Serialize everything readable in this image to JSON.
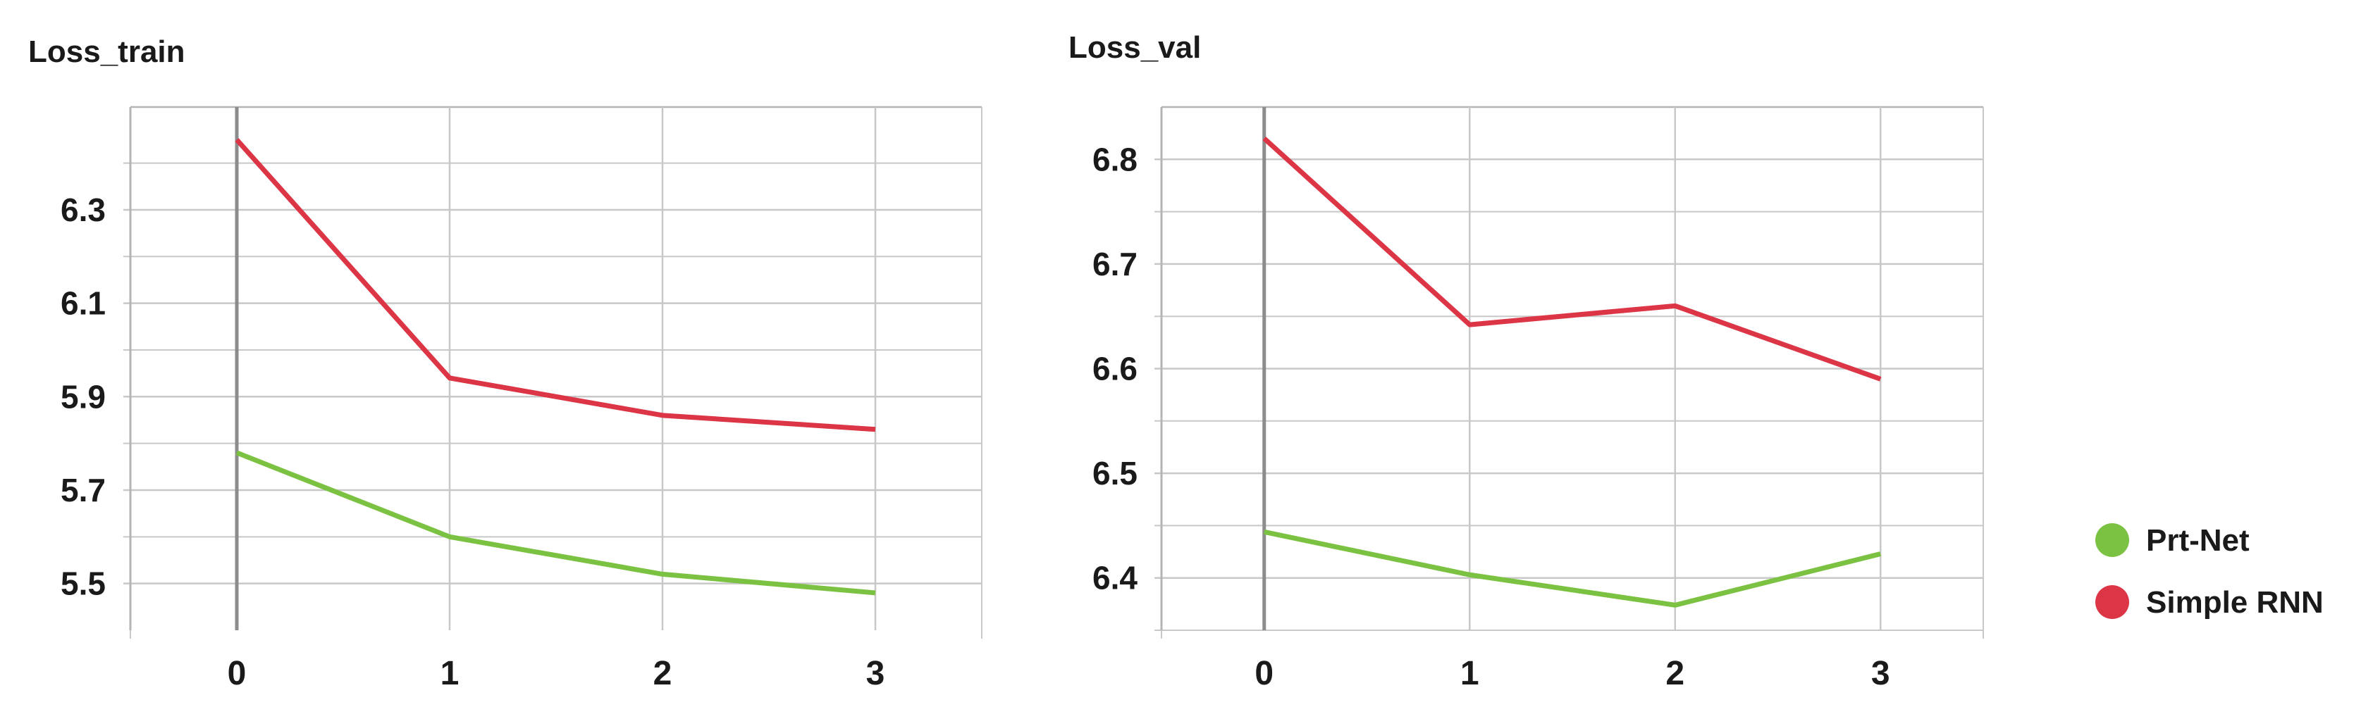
{
  "colors": {
    "green": "#7cc242",
    "red": "#dc3545",
    "grid": "#c8c8c8",
    "frame": "#b4b4b4",
    "zero_line": "#8c8c8c"
  },
  "legend": {
    "placement": "right",
    "items": [
      {
        "label": "Prt-Net",
        "color": "#7cc242",
        "marker": "circle"
      },
      {
        "label": "Simple RNN",
        "color": "#dc3545",
        "marker": "circle"
      }
    ]
  },
  "chart_data": [
    {
      "type": "line",
      "title": "Loss_train",
      "x": [
        0,
        1,
        2,
        3
      ],
      "xlim": [
        -0.5,
        3.5
      ],
      "ylim": [
        5.4,
        6.52
      ],
      "yticks": [
        5.5,
        5.7,
        5.9,
        6.1,
        6.3
      ],
      "ytick_labels": [
        "5.5",
        "5.7",
        "5.9",
        "6.1",
        "6.3"
      ],
      "xtick_labels": [
        "0",
        "1",
        "2",
        "3"
      ],
      "grid": true,
      "series": [
        {
          "name": "Prt-Net",
          "color": "#7cc242",
          "values": [
            5.78,
            5.6,
            5.52,
            5.48
          ]
        },
        {
          "name": "Simple RNN",
          "color": "#dc3545",
          "values": [
            6.45,
            5.94,
            5.86,
            5.83
          ]
        }
      ]
    },
    {
      "type": "line",
      "title": "Loss_val",
      "x": [
        0,
        1,
        2,
        3
      ],
      "xlim": [
        -0.5,
        3.5
      ],
      "ylim": [
        6.35,
        6.85
      ],
      "yticks": [
        6.4,
        6.5,
        6.6,
        6.7,
        6.8
      ],
      "ytick_labels": [
        "6.4",
        "6.5",
        "6.6",
        "6.7",
        "6.8"
      ],
      "xtick_labels": [
        "0",
        "1",
        "2",
        "3"
      ],
      "grid": true,
      "series": [
        {
          "name": "Prt-Net",
          "color": "#7cc242",
          "values": [
            6.444,
            6.403,
            6.374,
            6.423
          ]
        },
        {
          "name": "Simple RNN",
          "color": "#dc3545",
          "values": [
            6.82,
            6.642,
            6.66,
            6.59
          ]
        }
      ]
    }
  ]
}
